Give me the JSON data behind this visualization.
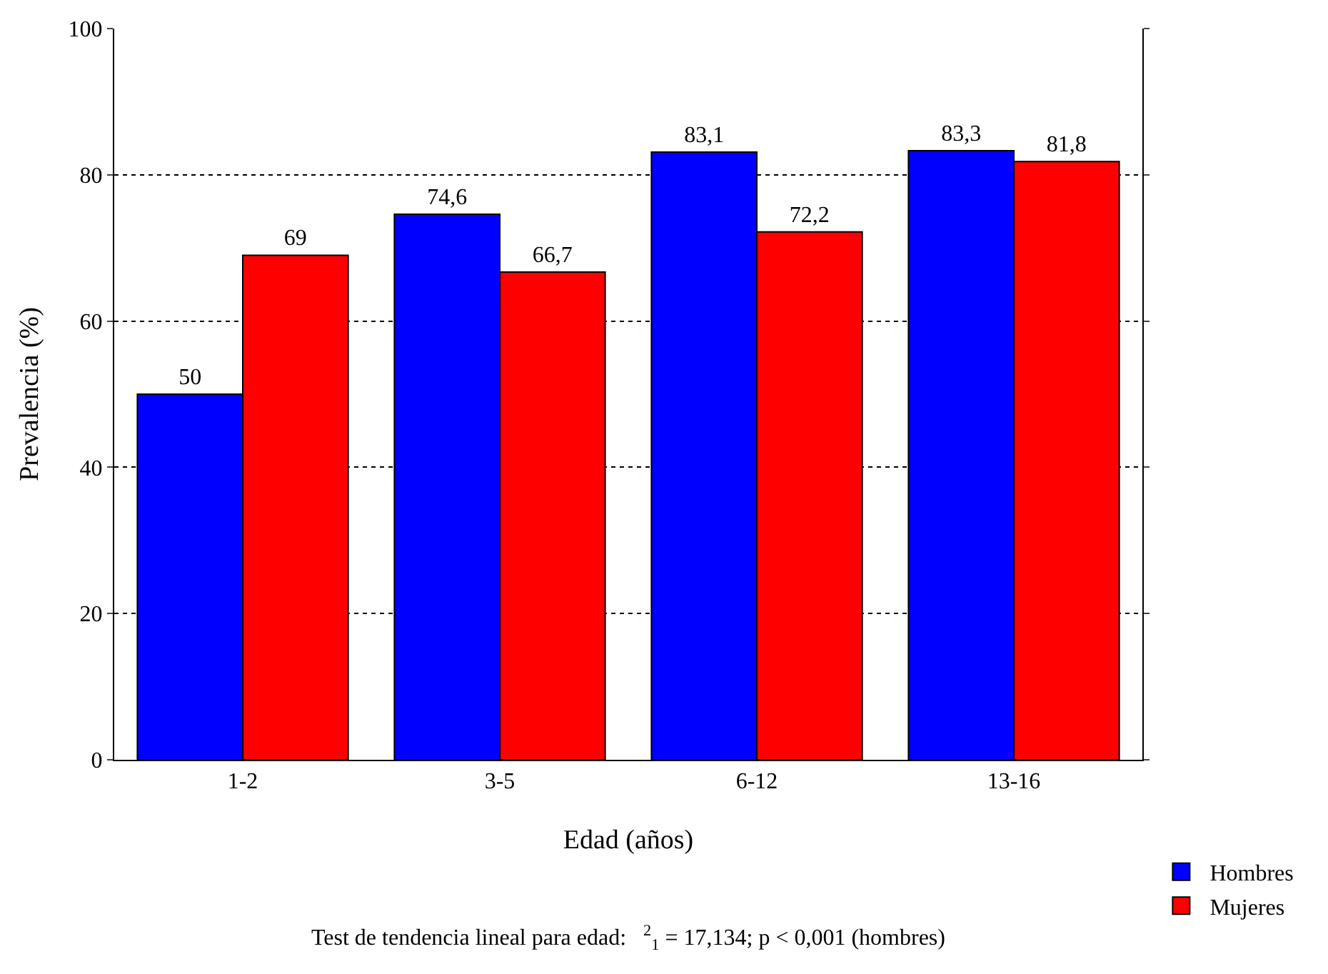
{
  "chart_data": {
    "type": "bar",
    "xlabel": "Edad (años)",
    "ylabel": "Prevalencia (%)",
    "categories": [
      "1-2",
      "3-5",
      "6-12",
      "13-16"
    ],
    "series": [
      {
        "name": "Hombres",
        "color": "#0000ff",
        "values": [
          50,
          74.6,
          83.1,
          83.3
        ],
        "value_labels": [
          "50",
          "74,6",
          "83,1",
          "83,3"
        ]
      },
      {
        "name": "Mujeres",
        "color": "#ff0000",
        "values": [
          69,
          66.7,
          72.2,
          81.8
        ],
        "value_labels": [
          "69",
          "66,7",
          "72,2",
          "81,8"
        ]
      }
    ],
    "ylim": [
      0,
      100
    ],
    "yticks": [
      0,
      20,
      40,
      60,
      80,
      100
    ],
    "grid": "y",
    "legend": "bottom right",
    "annotations": [
      "Test de tendencia lineal para edad:   $^{2}$$_{1}$ = 17,134; p < 0,001 (hombres)"
    ]
  }
}
